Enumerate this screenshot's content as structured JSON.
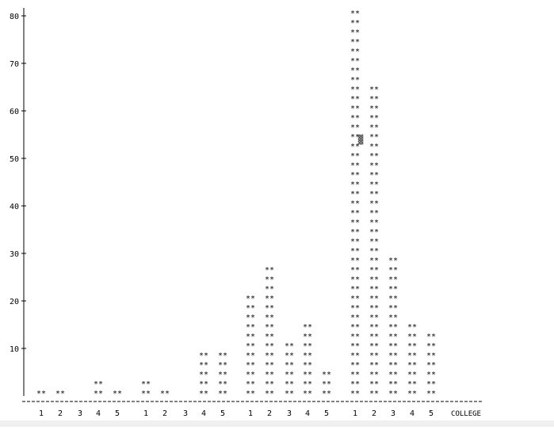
{
  "chart_data": {
    "type": "bar",
    "style": "ascii-histogram",
    "bar_glyph": "**",
    "xlabel": "COLLEGE",
    "ylabel": "",
    "ylim": [
      0,
      84
    ],
    "yticks": [
      10,
      20,
      30,
      40,
      50,
      60,
      70,
      80
    ],
    "ytick_labels": [
      "10",
      "20",
      "30",
      "40",
      "50",
      "60",
      "70",
      "80"
    ],
    "grid": false,
    "colors": {
      "text": "#000000",
      "axis": "#000000",
      "marker": "#555555"
    },
    "groups": [
      {
        "categories": [
          "1",
          "2",
          "3",
          "4",
          "5"
        ],
        "values": [
          2,
          2,
          0,
          4,
          2
        ]
      },
      {
        "categories": [
          "1",
          "2",
          "3",
          "4",
          "5"
        ],
        "values": [
          4,
          2,
          0,
          10,
          10
        ]
      },
      {
        "categories": [
          "1",
          "2",
          "3",
          "4",
          "5"
        ],
        "values": [
          22,
          28,
          12,
          16,
          6
        ]
      },
      {
        "categories": [
          "1",
          "2",
          "3",
          "4",
          "5"
        ],
        "values": [
          82,
          66,
          30,
          16,
          14
        ]
      }
    ],
    "annotations": [
      {
        "type": "marker",
        "glyph": "▓",
        "group": 3,
        "category": "1",
        "y": 54
      }
    ]
  }
}
